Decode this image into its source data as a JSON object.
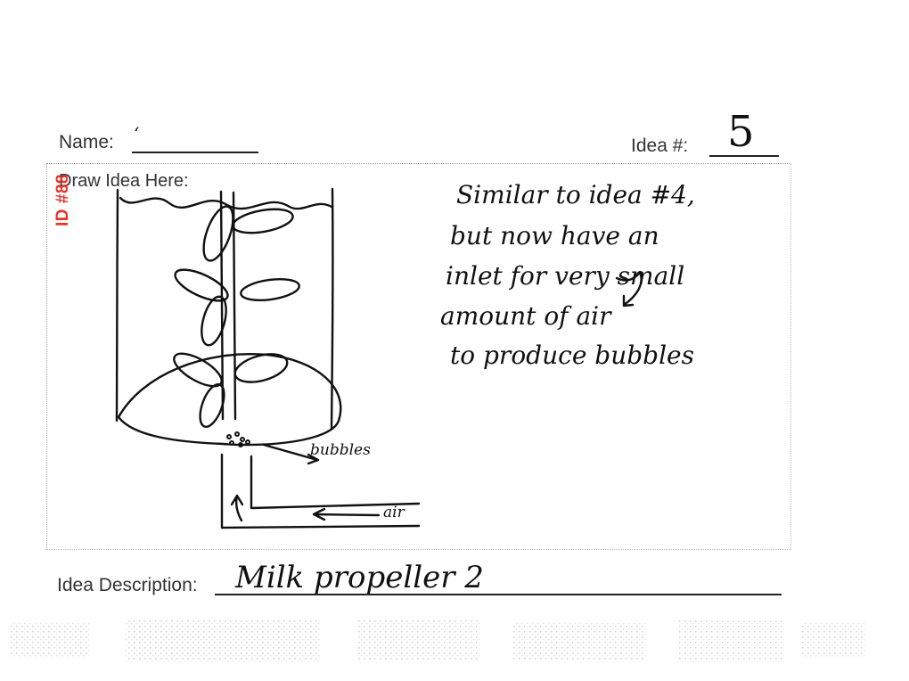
{
  "form": {
    "name_label": "Name:",
    "name_value": "‘",
    "idea_number_label": "Idea #:",
    "idea_number_value": "5",
    "draw_label": "Draw Idea Here:",
    "id_stamp": "ID #88",
    "description_label": "Idea Description:",
    "description_value": "Milk propeller 2"
  },
  "sketch": {
    "notes": [
      "Similar to idea #4,",
      "but now have an",
      "inlet for very small",
      "amount of air",
      "to produce bubbles"
    ],
    "label_bubbles": "bubbles",
    "label_air": "air"
  }
}
